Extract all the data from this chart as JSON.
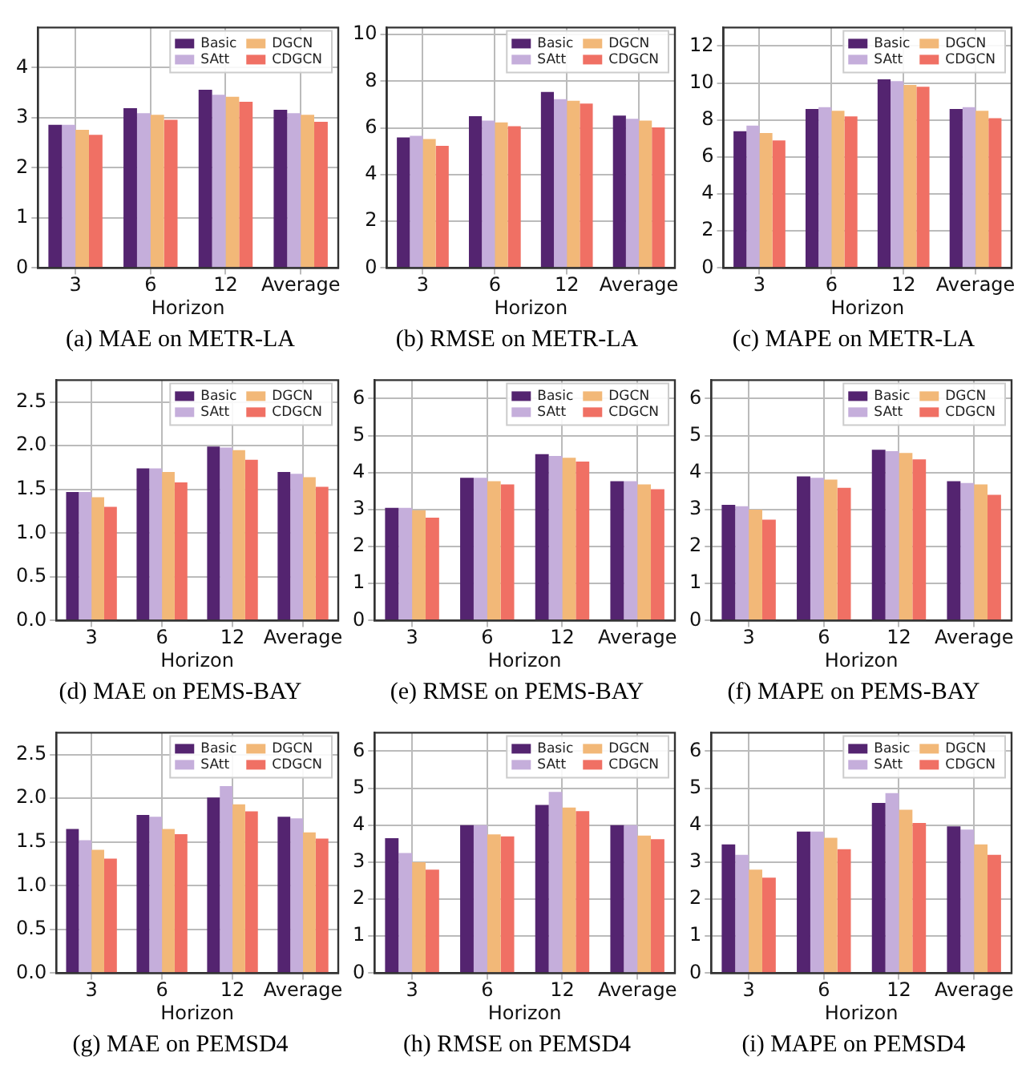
{
  "chart_data": [
    {
      "type": "bar",
      "title": "(a) MAE on METR-LA",
      "xlabel": "Horizon",
      "categories": [
        "3",
        "6",
        "12",
        "Average"
      ],
      "ylim": [
        0,
        4.8
      ],
      "yticks": [
        0,
        1,
        2,
        3,
        4
      ],
      "grid": true,
      "legend": "top right",
      "series": [
        {
          "name": "Basic",
          "color": "#542470",
          "values": [
            2.86,
            3.19,
            3.56,
            3.16
          ]
        },
        {
          "name": "SAtt",
          "color": "#c5aedb",
          "values": [
            2.86,
            3.09,
            3.46,
            3.09
          ]
        },
        {
          "name": "DGCN",
          "color": "#f2b878",
          "values": [
            2.76,
            3.06,
            3.42,
            3.06
          ]
        },
        {
          "name": "CDGCN",
          "color": "#f07064",
          "values": [
            2.66,
            2.96,
            3.32,
            2.92
          ]
        }
      ]
    },
    {
      "type": "bar",
      "title": "(b) RMSE on METR-LA",
      "xlabel": "Horizon",
      "categories": [
        "3",
        "6",
        "12",
        "Average"
      ],
      "ylim": [
        0,
        10.3
      ],
      "yticks": [
        0,
        2,
        4,
        6,
        8,
        10
      ],
      "grid": true,
      "legend": "top right",
      "series": [
        {
          "name": "Basic",
          "color": "#542470",
          "values": [
            5.59,
            6.5,
            7.54,
            6.53
          ]
        },
        {
          "name": "SAtt",
          "color": "#c5aedb",
          "values": [
            5.66,
            6.31,
            7.23,
            6.39
          ]
        },
        {
          "name": "DGCN",
          "color": "#f2b878",
          "values": [
            5.52,
            6.24,
            7.16,
            6.31
          ]
        },
        {
          "name": "CDGCN",
          "color": "#f07064",
          "values": [
            5.23,
            6.07,
            7.04,
            6.02
          ]
        }
      ]
    },
    {
      "type": "bar",
      "title": "(c) MAPE on METR-LA",
      "xlabel": "Horizon",
      "categories": [
        "3",
        "6",
        "12",
        "Average"
      ],
      "ylim": [
        0,
        13
      ],
      "yticks": [
        0,
        2,
        4,
        6,
        8,
        10,
        12
      ],
      "grid": true,
      "legend": "top right",
      "series": [
        {
          "name": "Basic",
          "color": "#542470",
          "values": [
            7.4,
            8.6,
            10.2,
            8.6
          ]
        },
        {
          "name": "SAtt",
          "color": "#c5aedb",
          "values": [
            7.7,
            8.7,
            10.1,
            8.7
          ]
        },
        {
          "name": "DGCN",
          "color": "#f2b878",
          "values": [
            7.3,
            8.5,
            9.9,
            8.5
          ]
        },
        {
          "name": "CDGCN",
          "color": "#f07064",
          "values": [
            6.9,
            8.2,
            9.8,
            8.1
          ]
        }
      ]
    },
    {
      "type": "bar",
      "title": "(d) MAE on PEMS-BAY",
      "xlabel": "Horizon",
      "categories": [
        "3",
        "6",
        "12",
        "Average"
      ],
      "ylim": [
        0,
        2.75
      ],
      "yticks": [
        {
          "value": 0,
          "label": "0.0"
        },
        {
          "value": 0.5,
          "label": "0.5"
        },
        {
          "value": 1,
          "label": "1.0"
        },
        {
          "value": 1.5,
          "label": "1.5"
        },
        {
          "value": 2,
          "label": "2.0"
        },
        {
          "value": 2.5,
          "label": "2.5"
        }
      ],
      "grid": true,
      "legend": "top right",
      "series": [
        {
          "name": "Basic",
          "color": "#542470",
          "values": [
            1.47,
            1.74,
            1.99,
            1.7
          ]
        },
        {
          "name": "SAtt",
          "color": "#c5aedb",
          "values": [
            1.47,
            1.74,
            1.98,
            1.68
          ]
        },
        {
          "name": "DGCN",
          "color": "#f2b878",
          "values": [
            1.41,
            1.7,
            1.95,
            1.64
          ]
        },
        {
          "name": "CDGCN",
          "color": "#f07064",
          "values": [
            1.3,
            1.58,
            1.84,
            1.53
          ]
        }
      ]
    },
    {
      "type": "bar",
      "title": "(e) RMSE on PEMS-BAY",
      "xlabel": "Horizon",
      "categories": [
        "3",
        "6",
        "12",
        "Average"
      ],
      "ylim": [
        0,
        6.5
      ],
      "yticks": [
        0,
        1,
        2,
        3,
        4,
        5,
        6
      ],
      "grid": true,
      "legend": "top right",
      "series": [
        {
          "name": "Basic",
          "color": "#542470",
          "values": [
            3.05,
            3.86,
            4.5,
            3.77
          ]
        },
        {
          "name": "SAtt",
          "color": "#c5aedb",
          "values": [
            3.05,
            3.86,
            4.45,
            3.77
          ]
        },
        {
          "name": "DGCN",
          "color": "#f2b878",
          "values": [
            2.98,
            3.77,
            4.4,
            3.68
          ]
        },
        {
          "name": "CDGCN",
          "color": "#f07064",
          "values": [
            2.78,
            3.68,
            4.3,
            3.55
          ]
        }
      ]
    },
    {
      "type": "bar",
      "title": "(f) MAPE on PEMS-BAY",
      "xlabel": "Horizon",
      "categories": [
        "3",
        "6",
        "12",
        "Average"
      ],
      "ylim": [
        0,
        6.5
      ],
      "yticks": [
        0,
        1,
        2,
        3,
        4,
        5,
        6
      ],
      "grid": true,
      "legend": "top right",
      "series": [
        {
          "name": "Basic",
          "color": "#542470",
          "values": [
            3.13,
            3.9,
            4.62,
            3.77
          ]
        },
        {
          "name": "SAtt",
          "color": "#c5aedb",
          "values": [
            3.09,
            3.86,
            4.58,
            3.72
          ]
        },
        {
          "name": "DGCN",
          "color": "#f2b878",
          "values": [
            3.0,
            3.81,
            4.53,
            3.68
          ]
        },
        {
          "name": "CDGCN",
          "color": "#f07064",
          "values": [
            2.73,
            3.59,
            4.36,
            3.4
          ]
        }
      ]
    },
    {
      "type": "bar",
      "title": "(g) MAE on PEMSD4",
      "xlabel": "Horizon",
      "categories": [
        "3",
        "6",
        "12",
        "Average"
      ],
      "ylim": [
        0,
        2.75
      ],
      "yticks": [
        {
          "value": 0,
          "label": "0.0"
        },
        {
          "value": 0.5,
          "label": "0.5"
        },
        {
          "value": 1,
          "label": "1.0"
        },
        {
          "value": 1.5,
          "label": "1.5"
        },
        {
          "value": 2,
          "label": "2.0"
        },
        {
          "value": 2.5,
          "label": "2.5"
        }
      ],
      "grid": true,
      "legend": "top right",
      "series": [
        {
          "name": "Basic",
          "color": "#542470",
          "values": [
            1.65,
            1.81,
            2.01,
            1.79
          ]
        },
        {
          "name": "SAtt",
          "color": "#c5aedb",
          "values": [
            1.52,
            1.79,
            2.14,
            1.77
          ]
        },
        {
          "name": "DGCN",
          "color": "#f2b878",
          "values": [
            1.41,
            1.65,
            1.93,
            1.61
          ]
        },
        {
          "name": "CDGCN",
          "color": "#f07064",
          "values": [
            1.31,
            1.59,
            1.85,
            1.54
          ]
        }
      ]
    },
    {
      "type": "bar",
      "title": "(h) RMSE on PEMSD4",
      "xlabel": "Horizon",
      "categories": [
        "3",
        "6",
        "12",
        "Average"
      ],
      "ylim": [
        0,
        6.5
      ],
      "yticks": [
        0,
        1,
        2,
        3,
        4,
        5,
        6
      ],
      "grid": true,
      "legend": "top right",
      "series": [
        {
          "name": "Basic",
          "color": "#542470",
          "values": [
            3.65,
            4.0,
            4.55,
            4.0
          ]
        },
        {
          "name": "SAtt",
          "color": "#c5aedb",
          "values": [
            3.25,
            4.0,
            4.9,
            4.0
          ]
        },
        {
          "name": "DGCN",
          "color": "#f2b878",
          "values": [
            3.0,
            3.75,
            4.48,
            3.72
          ]
        },
        {
          "name": "CDGCN",
          "color": "#f07064",
          "values": [
            2.8,
            3.7,
            4.38,
            3.62
          ]
        }
      ]
    },
    {
      "type": "bar",
      "title": "(i) MAPE on PEMSD4",
      "xlabel": "Horizon",
      "categories": [
        "3",
        "6",
        "12",
        "Average"
      ],
      "ylim": [
        0,
        6.5
      ],
      "yticks": [
        0,
        1,
        2,
        3,
        4,
        5,
        6
      ],
      "grid": true,
      "legend": "top right",
      "series": [
        {
          "name": "Basic",
          "color": "#542470",
          "values": [
            3.48,
            3.83,
            4.6,
            3.97
          ]
        },
        {
          "name": "SAtt",
          "color": "#c5aedb",
          "values": [
            3.2,
            3.83,
            4.87,
            3.88
          ]
        },
        {
          "name": "DGCN",
          "color": "#f2b878",
          "values": [
            2.8,
            3.66,
            4.42,
            3.48
          ]
        },
        {
          "name": "CDGCN",
          "color": "#f07064",
          "values": [
            2.58,
            3.35,
            4.06,
            3.2
          ]
        }
      ]
    }
  ]
}
